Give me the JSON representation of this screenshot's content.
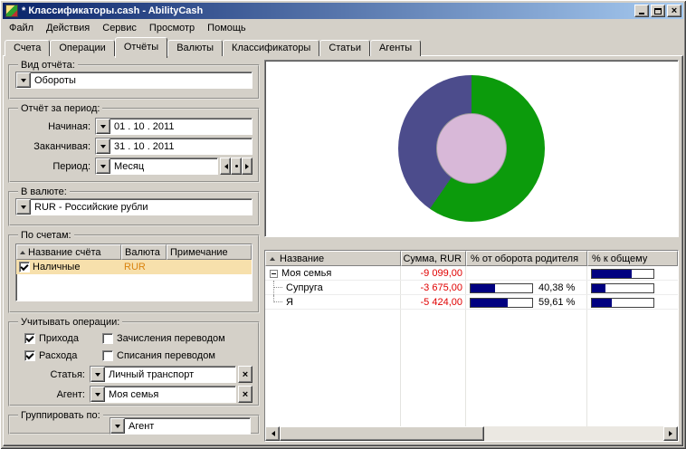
{
  "window": {
    "title": "* Классификаторы.cash - AbilityCash"
  },
  "menu": {
    "items": [
      "Файл",
      "Действия",
      "Сервис",
      "Просмотр",
      "Помощь"
    ]
  },
  "tabs": [
    {
      "label": "Счета"
    },
    {
      "label": "Операции"
    },
    {
      "label": "Отчёты",
      "active": true
    },
    {
      "label": "Валюты"
    },
    {
      "label": "Классификаторы"
    },
    {
      "label": "Статьи"
    },
    {
      "label": "Агенты"
    }
  ],
  "left": {
    "report_view": {
      "label": "Вид отчёта:",
      "value": "Обороты"
    },
    "report_period": {
      "label": "Отчёт за период:",
      "from_label": "Начиная:",
      "from_value": "01 . 10 . 2011",
      "to_label": "Заканчивая:",
      "to_value": "31 . 10 . 2011",
      "period_label": "Период:",
      "period_value": "Месяц"
    },
    "currency": {
      "label": "В валюте:",
      "value": "RUR - Российские рубли"
    },
    "accounts": {
      "label": "По счетам:",
      "columns": [
        "Название счёта",
        "Валюта",
        "Примечание"
      ],
      "rows": [
        {
          "checked": true,
          "name": "Наличные",
          "currency": "RUR",
          "note": ""
        }
      ]
    },
    "operations": {
      "label": "Учитывать операции:",
      "income": {
        "label": "Прихода",
        "checked": true
      },
      "transfer_in": {
        "label": "Зачисления переводом",
        "checked": false
      },
      "expense": {
        "label": "Расхода",
        "checked": true
      },
      "transfer_out": {
        "label": "Списания переводом",
        "checked": false
      },
      "article": {
        "label": "Статья:",
        "value": "Личный транспорт"
      },
      "agent": {
        "label": "Агент:",
        "value": "Моя семья"
      }
    },
    "grouping": {
      "label": "Группировать по:",
      "value": "Агент"
    }
  },
  "chart_data": {
    "type": "pie",
    "donut": true,
    "labels": [
      "Я",
      "Супруга"
    ],
    "values": [
      59.61,
      40.38
    ],
    "colors": [
      "#0c9b0c",
      "#4c4c8c"
    ],
    "hole_color": "#d8b8d8"
  },
  "report_table": {
    "columns": [
      "Название",
      "Сумма, RUR",
      "% от оборота родителя",
      "% к общему"
    ],
    "rows": [
      {
        "name": "Моя семья",
        "sum": "-9 099,00",
        "total_pct_est": 64
      },
      {
        "name": "Супруга",
        "sum": "-3 675,00",
        "parent_pct": 40.38,
        "parent_pct_label": "40,38 %",
        "total_pct_est": 22
      },
      {
        "name": "Я",
        "sum": "-5 424,00",
        "parent_pct": 59.61,
        "parent_pct_label": "59,61 %",
        "total_pct_est": 33
      }
    ]
  },
  "colors": {
    "negative_amount": "#e00000",
    "bar_fill": "#000080",
    "row_selection": "#f7e0ac",
    "titlebar_gradient": [
      "#0a246a",
      "#a6caf0"
    ]
  }
}
